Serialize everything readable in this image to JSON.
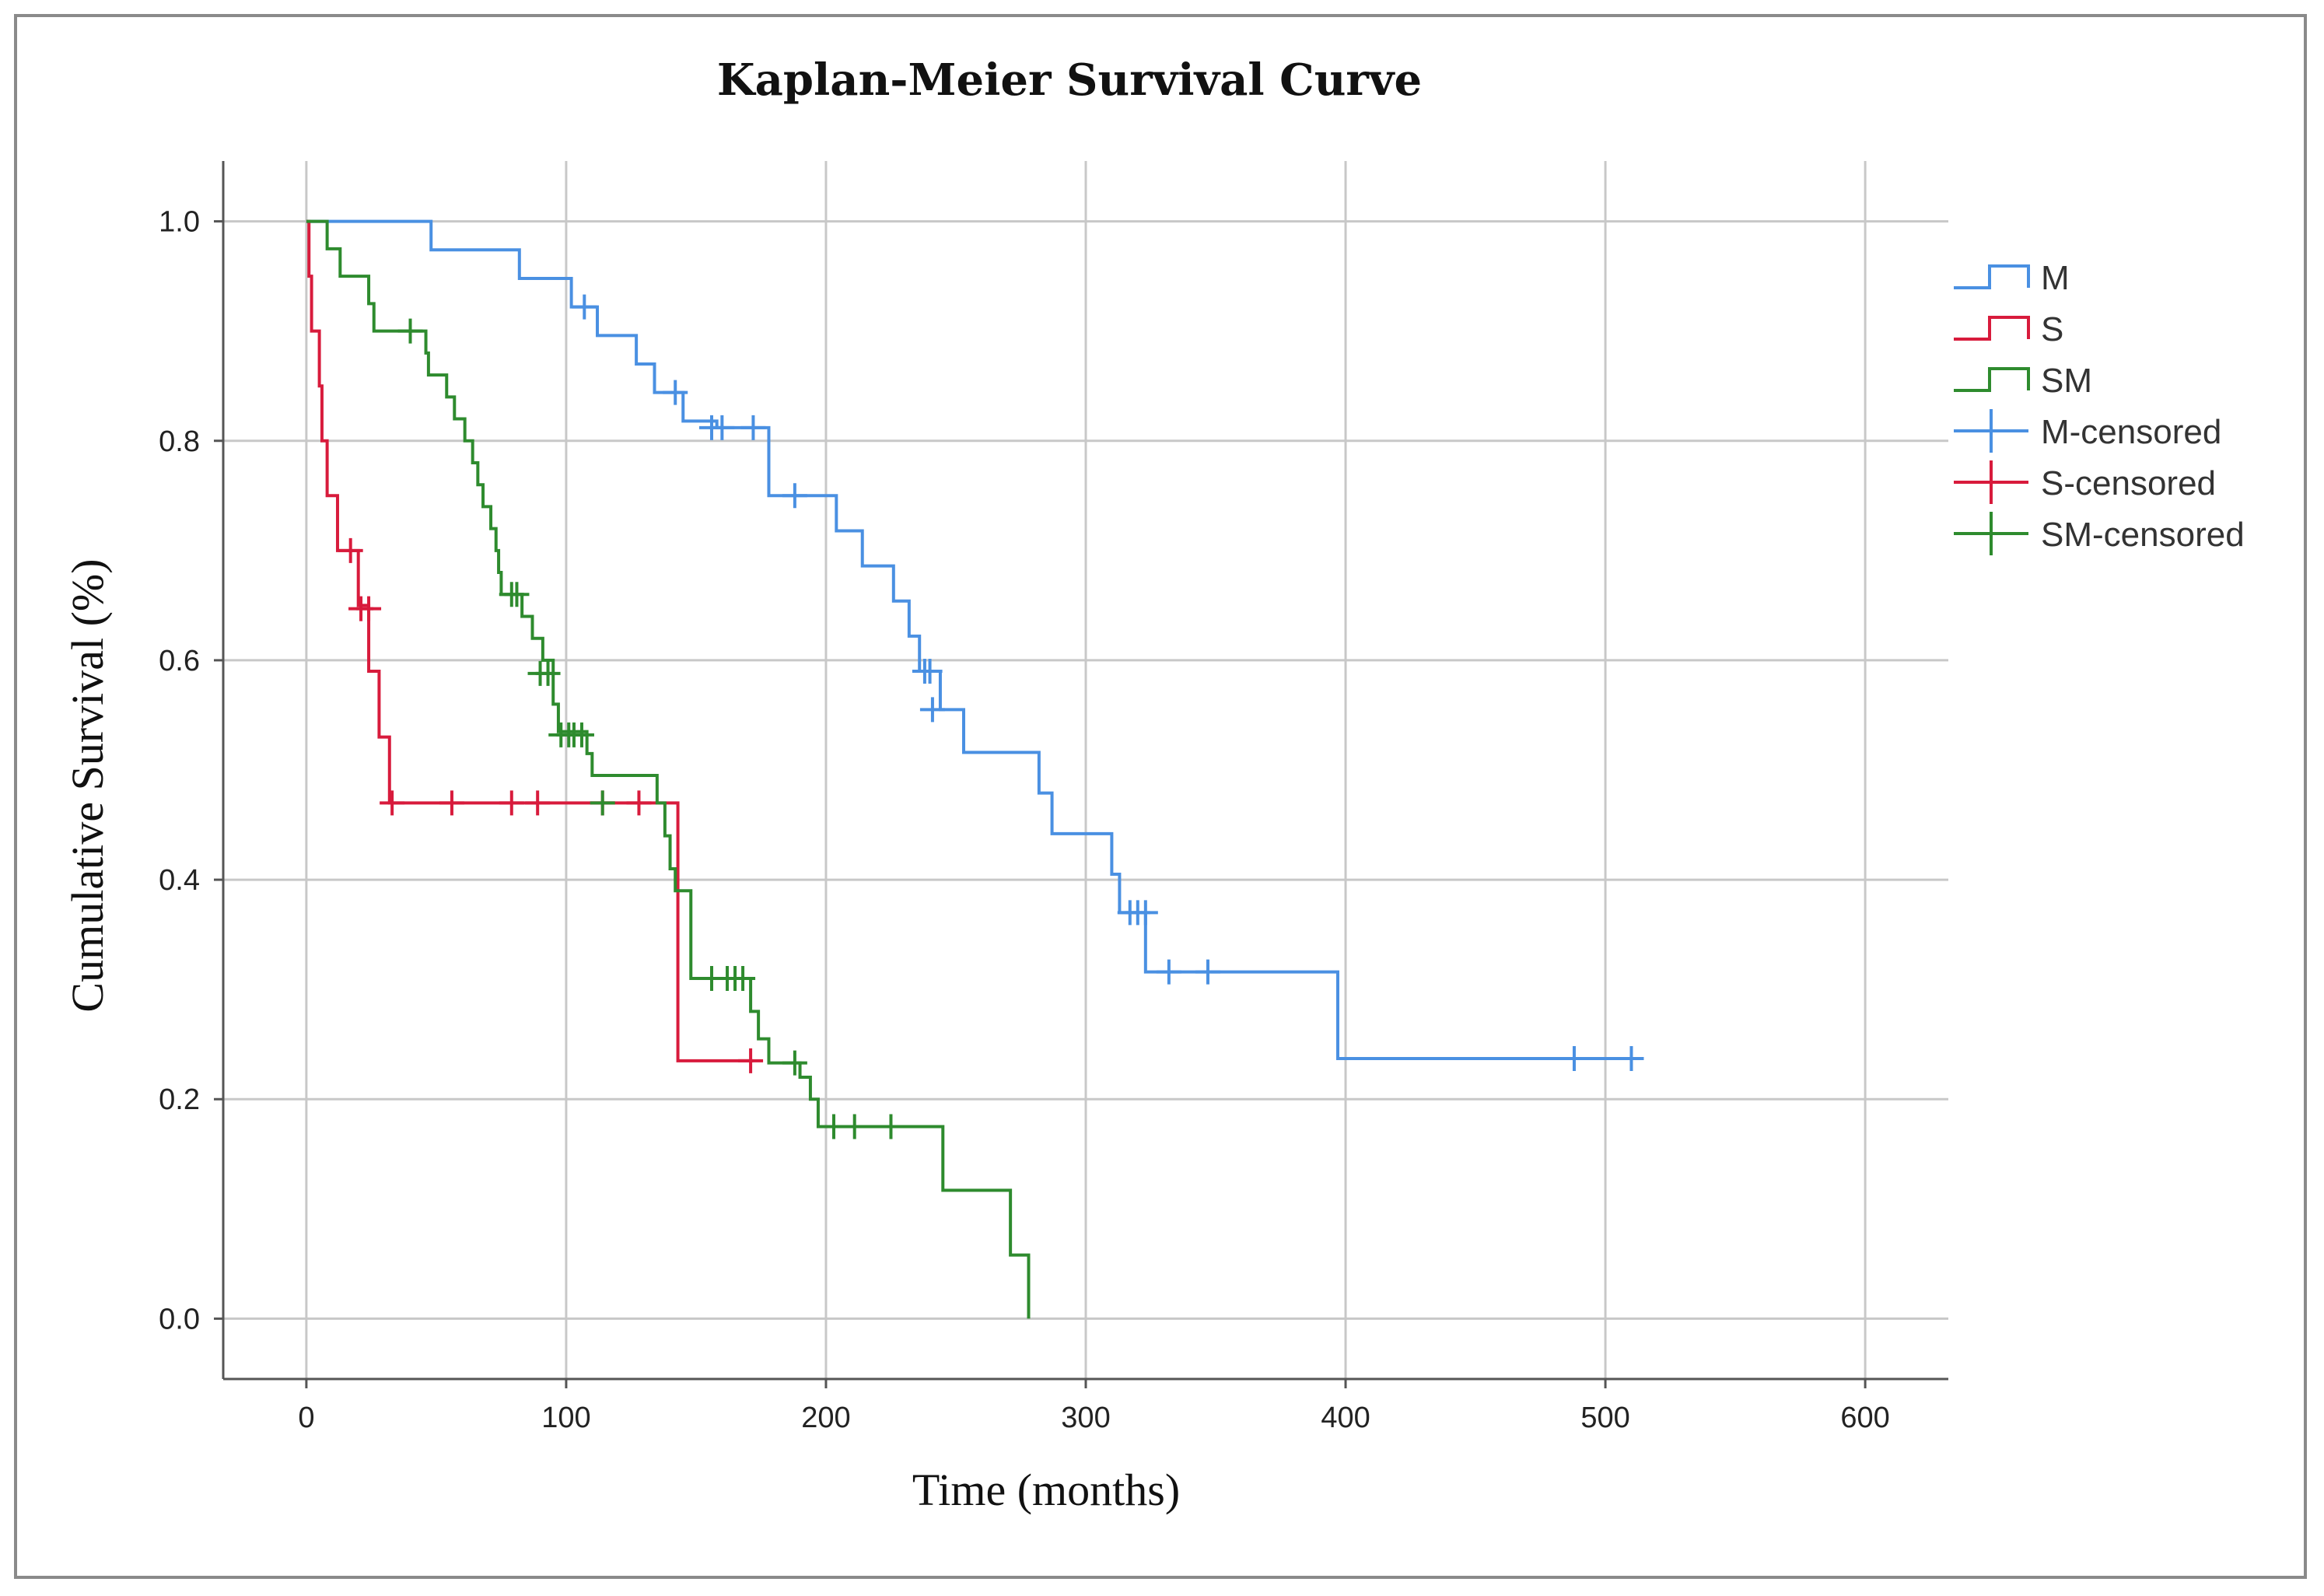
{
  "chart_data": {
    "type": "line",
    "subtype": "kaplan-meier-step",
    "title": "Kaplan-Meier Survival Curve",
    "xlabel": "Time (months)",
    "ylabel": "Cumulative Survival (%)",
    "xlim": [
      -32,
      632
    ],
    "ylim": [
      -0.055,
      1.055
    ],
    "x_ticks": [
      0,
      100,
      200,
      300,
      400,
      500,
      600
    ],
    "x_tick_labels": [
      "0",
      "100",
      "200",
      "300",
      "400",
      "500",
      "600"
    ],
    "y_ticks": [
      0.0,
      0.2,
      0.4,
      0.6,
      0.8,
      1.0
    ],
    "y_tick_labels": [
      "0.0",
      "0.2",
      "0.4",
      "0.6",
      "0.8",
      "1.0"
    ],
    "grid": true,
    "legend_position": "right",
    "legend": [
      "M",
      "S",
      "SM",
      "M-censored",
      "S-censored",
      "SM-censored"
    ],
    "series": [
      {
        "name": "M",
        "censored_label": "M-censored",
        "color": "#4a90e2",
        "steps": [
          [
            0,
            1.0
          ],
          [
            48,
            0.974
          ],
          [
            82,
            0.948
          ],
          [
            102,
            0.922
          ],
          [
            112,
            0.896
          ],
          [
            127,
            0.87
          ],
          [
            134,
            0.844
          ],
          [
            145,
            0.818
          ],
          [
            158,
            0.812
          ],
          [
            178,
            0.75
          ],
          [
            204,
            0.718
          ],
          [
            214,
            0.686
          ],
          [
            226,
            0.654
          ],
          [
            232,
            0.622
          ],
          [
            236,
            0.59
          ],
          [
            244,
            0.555
          ],
          [
            253,
            0.516
          ],
          [
            282,
            0.479
          ],
          [
            287,
            0.442
          ],
          [
            310,
            0.405
          ],
          [
            313,
            0.37
          ],
          [
            323,
            0.316
          ],
          [
            397,
            0.237
          ],
          [
            512,
            0.237
          ]
        ],
        "censored": [
          [
            107,
            0.922
          ],
          [
            142,
            0.844
          ],
          [
            156,
            0.812
          ],
          [
            160,
            0.812
          ],
          [
            172,
            0.812
          ],
          [
            188,
            0.75
          ],
          [
            238,
            0.59
          ],
          [
            240,
            0.59
          ],
          [
            241,
            0.555
          ],
          [
            317,
            0.37
          ],
          [
            320,
            0.37
          ],
          [
            323,
            0.37
          ],
          [
            332,
            0.316
          ],
          [
            347,
            0.316
          ],
          [
            488,
            0.237
          ],
          [
            510,
            0.237
          ]
        ]
      },
      {
        "name": "S",
        "censored_label": "S-censored",
        "color": "#d81b3c",
        "steps": [
          [
            0,
            1.0
          ],
          [
            1,
            0.95
          ],
          [
            2,
            0.9
          ],
          [
            5,
            0.85
          ],
          [
            6,
            0.8
          ],
          [
            8,
            0.75
          ],
          [
            12,
            0.7
          ],
          [
            20,
            0.65
          ],
          [
            24,
            0.59
          ],
          [
            28,
            0.53
          ],
          [
            32,
            0.47
          ],
          [
            143,
            0.235
          ],
          [
            172,
            0.235
          ]
        ],
        "censored": [
          [
            17,
            0.7
          ],
          [
            21,
            0.647
          ],
          [
            24,
            0.647
          ],
          [
            33,
            0.47
          ],
          [
            56,
            0.47
          ],
          [
            79,
            0.47
          ],
          [
            89,
            0.47
          ],
          [
            114,
            0.47
          ],
          [
            128,
            0.47
          ],
          [
            171,
            0.235
          ]
        ]
      },
      {
        "name": "SM",
        "censored_label": "SM-censored",
        "color": "#2e8b2e",
        "steps": [
          [
            0,
            1.0
          ],
          [
            8,
            0.975
          ],
          [
            13,
            0.95
          ],
          [
            24,
            0.925
          ],
          [
            26,
            0.9
          ],
          [
            46,
            0.88
          ],
          [
            47,
            0.86
          ],
          [
            54,
            0.84
          ],
          [
            57,
            0.82
          ],
          [
            61,
            0.8
          ],
          [
            64,
            0.78
          ],
          [
            66,
            0.76
          ],
          [
            68,
            0.74
          ],
          [
            71,
            0.72
          ],
          [
            73,
            0.7
          ],
          [
            74,
            0.68
          ],
          [
            75,
            0.66
          ],
          [
            83,
            0.64
          ],
          [
            87,
            0.62
          ],
          [
            91,
            0.6
          ],
          [
            95,
            0.56
          ],
          [
            97,
            0.535
          ],
          [
            108,
            0.515
          ],
          [
            110,
            0.495
          ],
          [
            135,
            0.47
          ],
          [
            138,
            0.44
          ],
          [
            140,
            0.41
          ],
          [
            142,
            0.39
          ],
          [
            148,
            0.31
          ],
          [
            171,
            0.28
          ],
          [
            174,
            0.255
          ],
          [
            178,
            0.233
          ],
          [
            190,
            0.22
          ],
          [
            194,
            0.2
          ],
          [
            197,
            0.175
          ],
          [
            245,
            0.117
          ],
          [
            271,
            0.058
          ],
          [
            278,
            0.0
          ]
        ],
        "censored": [
          [
            40,
            0.9
          ],
          [
            79,
            0.66
          ],
          [
            81,
            0.66
          ],
          [
            90,
            0.588
          ],
          [
            93,
            0.588
          ],
          [
            98,
            0.532
          ],
          [
            101,
            0.532
          ],
          [
            103,
            0.532
          ],
          [
            106,
            0.532
          ],
          [
            114,
            0.47
          ],
          [
            156,
            0.31
          ],
          [
            162,
            0.31
          ],
          [
            165,
            0.31
          ],
          [
            168,
            0.31
          ],
          [
            188,
            0.233
          ],
          [
            203,
            0.175
          ],
          [
            211,
            0.175
          ],
          [
            225,
            0.175
          ]
        ]
      }
    ]
  }
}
